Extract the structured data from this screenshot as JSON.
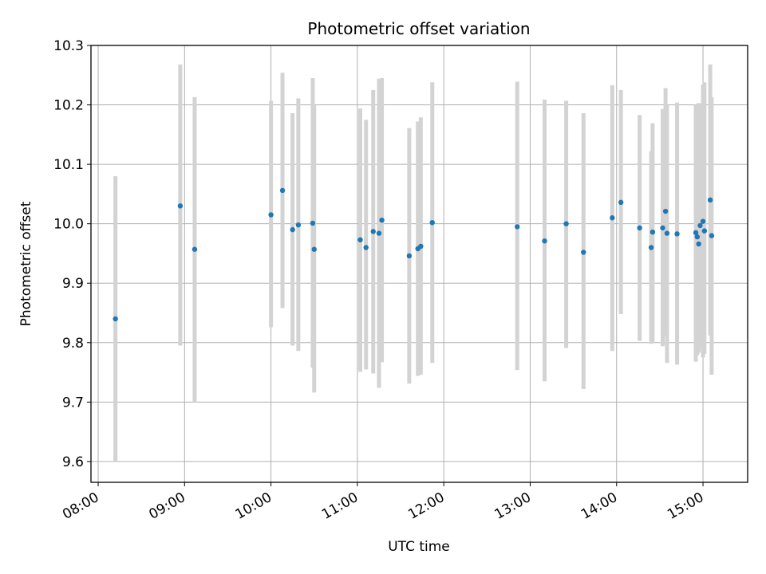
{
  "chart_data": {
    "type": "scatter",
    "title": "Photometric offset variation",
    "xlabel": "UTC time",
    "ylabel": "Photometric offset",
    "x_unit": "UTC time of day",
    "xlim": [
      "07:55",
      "15:31"
    ],
    "ylim": [
      9.565,
      10.3
    ],
    "xticks": [
      "08:00",
      "09:00",
      "10:00",
      "11:00",
      "12:00",
      "13:00",
      "14:00",
      "15:00"
    ],
    "yticks": [
      "9.6",
      "9.7",
      "9.8",
      "9.9",
      "10.0",
      "10.1",
      "10.2",
      "10.3"
    ],
    "grid": true,
    "marker_color": "#1f77b4",
    "errorbar_color": "#d3d3d3",
    "points": [
      {
        "x": "08:12",
        "y": 9.84,
        "err_low": 9.6,
        "err_high": 10.08
      },
      {
        "x": "08:57",
        "y": 10.03,
        "err_low": 9.795,
        "err_high": 10.268
      },
      {
        "x": "09:07",
        "y": 9.957,
        "err_low": 9.7,
        "err_high": 10.213
      },
      {
        "x": "10:00",
        "y": 10.015,
        "err_low": 9.826,
        "err_high": 10.207
      },
      {
        "x": "10:08",
        "y": 10.056,
        "err_low": 9.858,
        "err_high": 10.254
      },
      {
        "x": "10:15",
        "y": 9.99,
        "err_low": 9.795,
        "err_high": 10.186
      },
      {
        "x": "10:19",
        "y": 9.998,
        "err_low": 9.786,
        "err_high": 10.211
      },
      {
        "x": "10:29",
        "y": 10.001,
        "err_low": 9.758,
        "err_high": 10.245
      },
      {
        "x": "10:30",
        "y": 9.957,
        "err_low": 9.716,
        "err_high": 10.199
      },
      {
        "x": "11:02",
        "y": 9.973,
        "err_low": 9.751,
        "err_high": 10.194
      },
      {
        "x": "11:06",
        "y": 9.96,
        "err_low": 9.755,
        "err_high": 10.175
      },
      {
        "x": "11:11",
        "y": 9.987,
        "err_low": 9.748,
        "err_high": 10.225
      },
      {
        "x": "11:15",
        "y": 9.984,
        "err_low": 9.724,
        "err_high": 10.244
      },
      {
        "x": "11:17",
        "y": 10.006,
        "err_low": 9.767,
        "err_high": 10.245
      },
      {
        "x": "11:36",
        "y": 9.946,
        "err_low": 9.731,
        "err_high": 10.161
      },
      {
        "x": "11:42",
        "y": 9.958,
        "err_low": 9.744,
        "err_high": 10.172
      },
      {
        "x": "11:44",
        "y": 9.962,
        "err_low": 9.746,
        "err_high": 10.179
      },
      {
        "x": "11:52",
        "y": 10.002,
        "err_low": 9.766,
        "err_high": 10.238
      },
      {
        "x": "12:51",
        "y": 9.995,
        "err_low": 9.754,
        "err_high": 10.239
      },
      {
        "x": "13:10",
        "y": 9.971,
        "err_low": 9.735,
        "err_high": 10.209
      },
      {
        "x": "13:25",
        "y": 10.0,
        "err_low": 9.791,
        "err_high": 10.207
      },
      {
        "x": "13:37",
        "y": 9.952,
        "err_low": 9.722,
        "err_high": 10.186
      },
      {
        "x": "13:57",
        "y": 10.01,
        "err_low": 9.786,
        "err_high": 10.233
      },
      {
        "x": "14:03",
        "y": 10.036,
        "err_low": 9.848,
        "err_high": 10.225
      },
      {
        "x": "14:16",
        "y": 9.993,
        "err_low": 9.803,
        "err_high": 10.183
      },
      {
        "x": "14:24",
        "y": 9.96,
        "err_low": 9.798,
        "err_high": 10.122
      },
      {
        "x": "14:25",
        "y": 9.986,
        "err_low": 9.801,
        "err_high": 10.169
      },
      {
        "x": "14:32",
        "y": 9.993,
        "err_low": 9.794,
        "err_high": 10.193
      },
      {
        "x": "14:34",
        "y": 10.021,
        "err_low": 9.812,
        "err_high": 10.228
      },
      {
        "x": "14:35",
        "y": 9.984,
        "err_low": 9.766,
        "err_high": 10.2
      },
      {
        "x": "14:42",
        "y": 9.983,
        "err_low": 9.763,
        "err_high": 10.204
      },
      {
        "x": "14:55",
        "y": 9.985,
        "err_low": 9.768,
        "err_high": 10.2
      },
      {
        "x": "14:56",
        "y": 9.978,
        "err_low": 9.779,
        "err_high": 10.196
      },
      {
        "x": "14:57",
        "y": 9.966,
        "err_low": 9.783,
        "err_high": 10.203
      },
      {
        "x": "14:58",
        "y": 9.997,
        "err_low": 9.791,
        "err_high": 10.199
      },
      {
        "x": "15:00",
        "y": 10.004,
        "err_low": 9.775,
        "err_high": 10.234
      },
      {
        "x": "15:01",
        "y": 9.988,
        "err_low": 9.781,
        "err_high": 10.238
      },
      {
        "x": "15:05",
        "y": 10.04,
        "err_low": 9.812,
        "err_high": 10.268
      },
      {
        "x": "15:06",
        "y": 9.98,
        "err_low": 9.746,
        "err_high": 10.213
      }
    ]
  }
}
